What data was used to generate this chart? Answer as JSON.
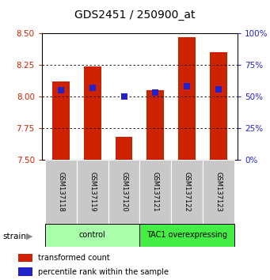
{
  "title": "GDS2451 / 250900_at",
  "samples": [
    "GSM137118",
    "GSM137119",
    "GSM137120",
    "GSM137121",
    "GSM137122",
    "GSM137123"
  ],
  "red_values": [
    8.12,
    8.24,
    7.68,
    8.05,
    8.47,
    8.35
  ],
  "blue_percentiles": [
    55,
    57,
    50,
    53,
    58,
    56
  ],
  "ymin": 7.5,
  "ymax": 8.5,
  "yticks_left": [
    7.5,
    7.75,
    8.0,
    8.25,
    8.5
  ],
  "yticks_right": [
    0,
    25,
    50,
    75,
    100
  ],
  "groups": [
    {
      "label": "control",
      "start": 0,
      "end": 3,
      "color": "#aaffaa"
    },
    {
      "label": "TAC1 overexpressing",
      "start": 3,
      "end": 6,
      "color": "#44ee44"
    }
  ],
  "bar_color": "#cc2200",
  "dot_color": "#2222cc",
  "bar_width": 0.55,
  "dot_size": 28,
  "axis_left_color": "#cc2200",
  "axis_right_color": "#2222cc",
  "bg_color": "#ffffff",
  "xlabels_bg": "#c8c8c8",
  "legend_red_label": "transformed count",
  "legend_blue_label": "percentile rank within the sample",
  "strain_label": "strain",
  "title_fontsize": 10,
  "tick_fontsize": 7.5,
  "label_fontsize": 7,
  "legend_fontsize": 7
}
